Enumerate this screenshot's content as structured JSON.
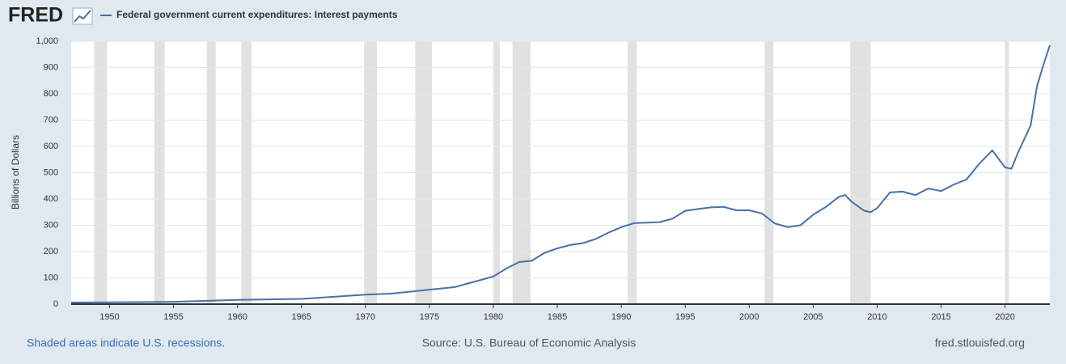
{
  "chart_data": {
    "type": "line",
    "brand": "FRED",
    "y_label": "Billions of Dollars",
    "note": "Shaded areas indicate U.S. recessions.",
    "source": "Source: U.S. Bureau of Economic Analysis",
    "site": "fred.stlouisfed.org",
    "xlim": [
      1947,
      2023.5
    ],
    "xticks": [
      1950,
      1955,
      1960,
      1965,
      1970,
      1975,
      1980,
      1985,
      1990,
      1995,
      2000,
      2005,
      2010,
      2015,
      2020
    ],
    "ylim": [
      0,
      1000
    ],
    "yticks": [
      0,
      100,
      200,
      300,
      400,
      500,
      600,
      700,
      800,
      900,
      {
        "value": 1000,
        "label": "1,000"
      }
    ],
    "grid": true,
    "recessions": [
      [
        1948.8,
        1949.8
      ],
      [
        1953.5,
        1954.3
      ],
      [
        1957.6,
        1958.3
      ],
      [
        1960.3,
        1961.1
      ],
      [
        1969.9,
        1970.9
      ],
      [
        1973.9,
        1975.2
      ],
      [
        1980.0,
        1980.5
      ],
      [
        1981.5,
        1982.9
      ],
      [
        1990.5,
        1991.2
      ],
      [
        2001.2,
        2001.9
      ],
      [
        2007.9,
        2009.5
      ],
      [
        2020.0,
        2020.3
      ]
    ],
    "x": [
      1947,
      1950,
      1955,
      1960,
      1965,
      1970,
      1972,
      1975,
      1977,
      1980,
      1981,
      1982,
      1983,
      1984,
      1985,
      1986,
      1987,
      1988,
      1989,
      1990,
      1991,
      1992,
      1993,
      1994,
      1995,
      1996,
      1997,
      1998,
      1999,
      2000,
      2001,
      2002,
      2003,
      2004,
      2005,
      2006,
      2007,
      2007.5,
      2008,
      2009,
      2009.5,
      2010,
      2011,
      2012,
      2013,
      2014,
      2015,
      2016,
      2017,
      2018,
      2019,
      2020,
      2020.5,
      2021,
      2022,
      2022.5,
      2023,
      2023.5
    ],
    "series": [
      {
        "name": "Federal government current expenditures: Interest payments",
        "color": "#4572a7",
        "values": [
          6,
          7,
          9,
          16,
          20,
          36,
          40,
          55,
          65,
          105,
          135,
          160,
          165,
          195,
          212,
          225,
          232,
          248,
          272,
          293,
          308,
          310,
          312,
          325,
          355,
          362,
          368,
          370,
          357,
          357,
          345,
          307,
          293,
          300,
          340,
          370,
          408,
          415,
          390,
          355,
          350,
          365,
          425,
          428,
          415,
          440,
          430,
          455,
          475,
          535,
          585,
          520,
          515,
          575,
          680,
          830,
          910,
          985
        ]
      }
    ]
  }
}
